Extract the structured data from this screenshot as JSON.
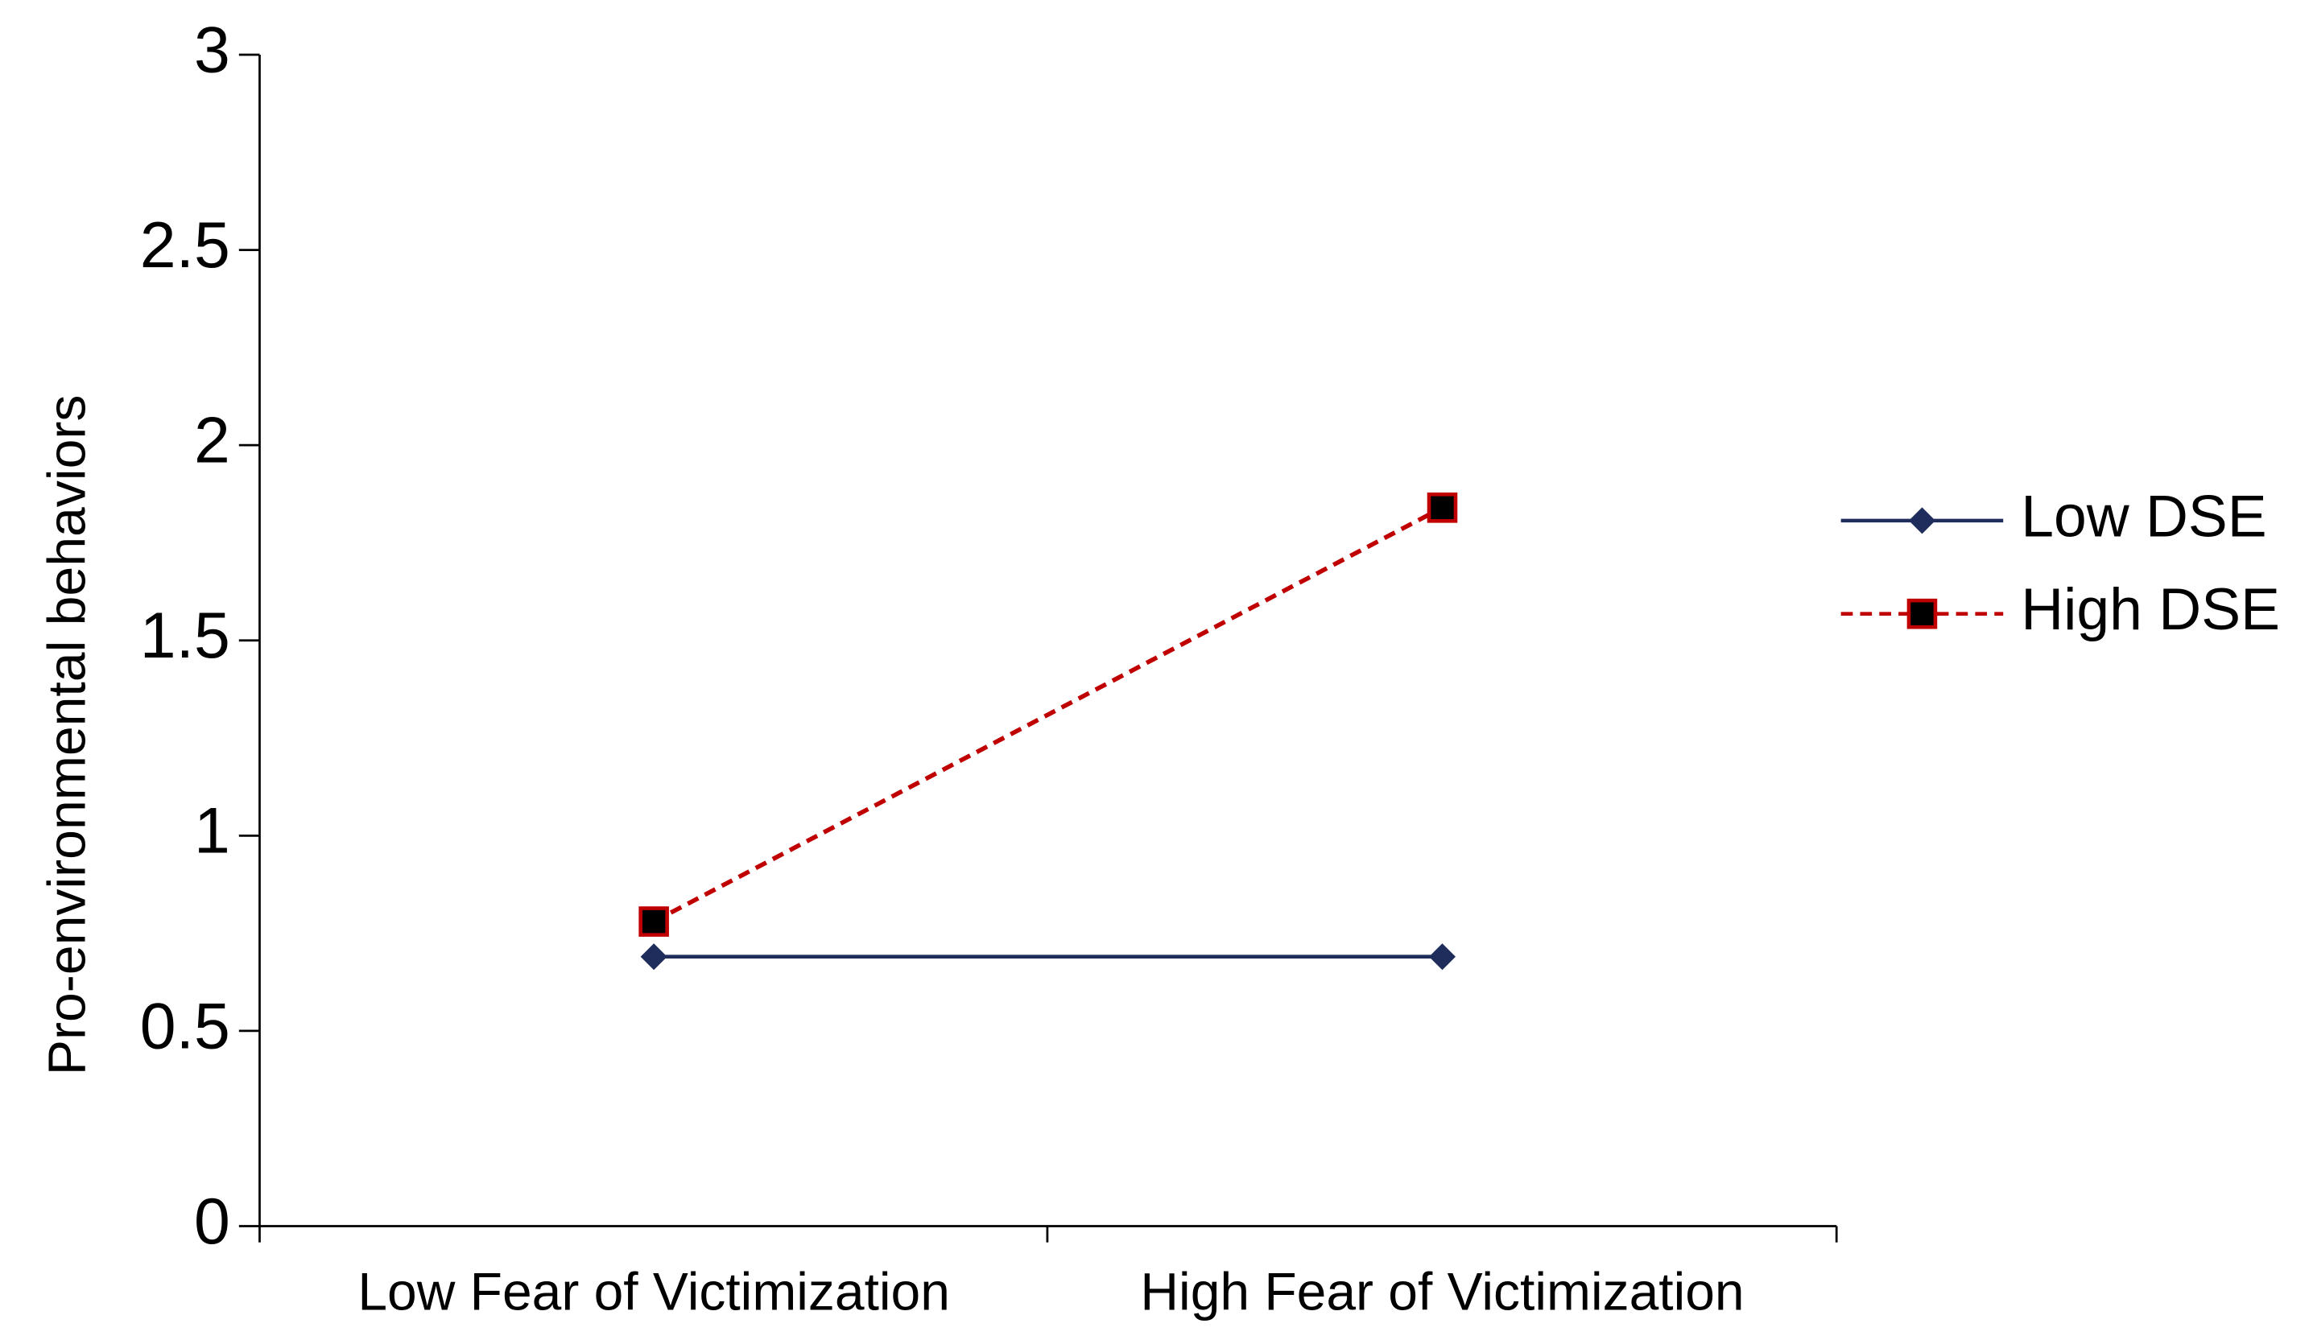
{
  "chart_data": {
    "type": "line",
    "y_label": "Pro-environmental behaviors",
    "categories": [
      "Low Fear of Victimization",
      "High Fear of Victimization"
    ],
    "series": [
      {
        "name": "Low DSE",
        "color": "#1f2d5c",
        "marker": "diamond",
        "linestyle": "solid",
        "values": [
          0.69,
          0.69
        ]
      },
      {
        "name": "High DSE",
        "color": "#c00000",
        "marker": "square",
        "linestyle": "dashed",
        "values": [
          0.78,
          1.84
        ]
      }
    ],
    "ylim": [
      0,
      3
    ],
    "yticks": [
      0,
      0.5,
      1,
      1.5,
      2,
      2.5,
      3
    ],
    "grid": false,
    "legend": "right"
  }
}
